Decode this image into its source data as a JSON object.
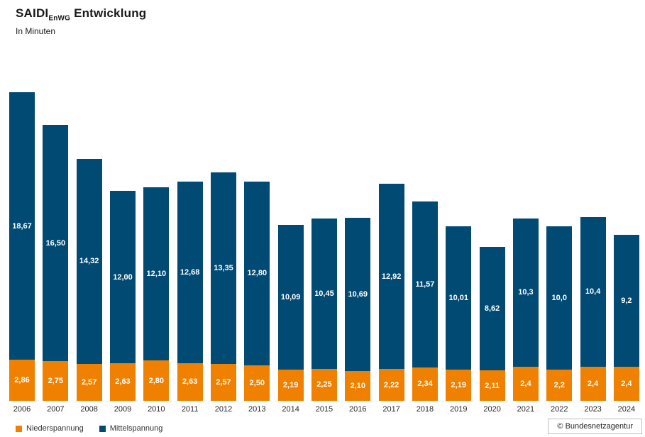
{
  "title": {
    "main": "SAIDI",
    "subscript": "EnWG",
    "rest": " Entwicklung"
  },
  "subtitle": "In Minuten",
  "source": "© Bundesnetzagentur",
  "colors": {
    "niederspannung": "#F08100",
    "mittelspannung": "#004A73",
    "label_text": "#FFFFFF"
  },
  "legend": [
    {
      "label": "Niederspannung",
      "color": "#F08100"
    },
    {
      "label": "Mittelspannung",
      "color": "#004A73"
    }
  ],
  "chart_data": {
    "type": "bar",
    "stacked": true,
    "title": "SAIDI EnWG Entwicklung",
    "subtitle": "In Minuten",
    "xlabel": "",
    "ylabel": "Minuten",
    "ylim": [
      0,
      21.53
    ],
    "grid": false,
    "legend_position": "bottom-left",
    "categories": [
      "2006",
      "2007",
      "2008",
      "2009",
      "2010",
      "2011",
      "2012",
      "2013",
      "2014",
      "2015",
      "2016",
      "2017",
      "2018",
      "2019",
      "2020",
      "2021",
      "2022",
      "2023",
      "2024"
    ],
    "series": [
      {
        "name": "Niederspannung",
        "color": "#F08100",
        "values": [
          2.86,
          2.75,
          2.57,
          2.63,
          2.8,
          2.63,
          2.57,
          2.5,
          2.19,
          2.25,
          2.1,
          2.22,
          2.34,
          2.19,
          2.11,
          2.4,
          2.2,
          2.4,
          2.4
        ],
        "labels": [
          "2,86",
          "2,75",
          "2,57",
          "2,63",
          "2,80",
          "2,63",
          "2,57",
          "2,50",
          "2,19",
          "2,25",
          "2,10",
          "2,22",
          "2,34",
          "2,19",
          "2,11",
          "2,4",
          "2,2",
          "2,4",
          "2,4"
        ]
      },
      {
        "name": "Mittelspannung",
        "color": "#004A73",
        "values": [
          18.67,
          16.5,
          14.32,
          12.0,
          12.1,
          12.68,
          13.35,
          12.8,
          10.09,
          10.45,
          10.69,
          12.92,
          11.57,
          10.01,
          8.62,
          10.3,
          10.0,
          10.4,
          9.2
        ],
        "labels": [
          "18,67",
          "16,50",
          "14,32",
          "12,00",
          "12,10",
          "12,68",
          "13,35",
          "12,80",
          "10,09",
          "10,45",
          "10,69",
          "12,92",
          "11,57",
          "10,01",
          "8,62",
          "10,3",
          "10,0",
          "10,4",
          "9,2"
        ]
      }
    ]
  }
}
